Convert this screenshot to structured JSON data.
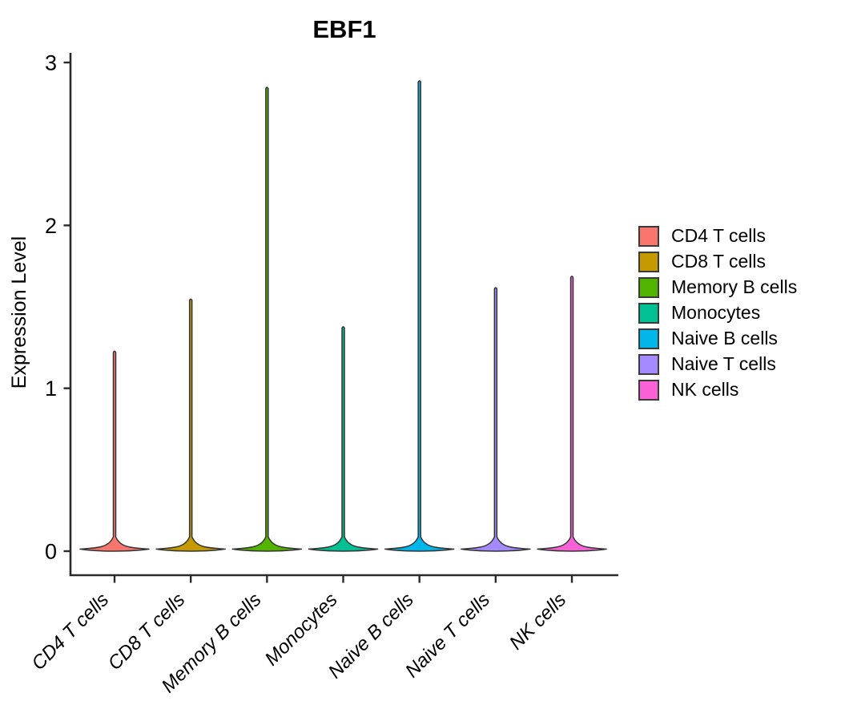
{
  "chart_data": {
    "type": "violin",
    "title": "EBF1",
    "ylabel": "Expression Level",
    "categories": [
      "CD4 T cells",
      "CD8 T cells",
      "Memory B cells",
      "Monocytes",
      "Naive B cells",
      "Naive T cells",
      "NK cells"
    ],
    "colors": [
      "#F8766D",
      "#C49A00",
      "#53B400",
      "#00C094",
      "#00B6EB",
      "#A58AFF",
      "#FB61D7"
    ],
    "max_expression": [
      1.23,
      1.55,
      2.85,
      1.38,
      2.89,
      1.62,
      1.69
    ],
    "distribution_note": "each violin has nearly all density at 0 (wide flat base) with a very thin tail rising to its maximum",
    "yticks": [
      0,
      1,
      2,
      3
    ],
    "ylim": [
      0,
      3.05
    ],
    "grid": false,
    "legend_position": "right",
    "legend_entries": [
      {
        "label": "CD4 T cells",
        "color": "#F8766D"
      },
      {
        "label": "CD8 T cells",
        "color": "#C49A00"
      },
      {
        "label": "Memory B cells",
        "color": "#53B400"
      },
      {
        "label": "Monocytes",
        "color": "#00C094"
      },
      {
        "label": "Naive B cells",
        "color": "#00B6EB"
      },
      {
        "label": "Naive T cells",
        "color": "#A58AFF"
      },
      {
        "label": "NK cells",
        "color": "#FB61D7"
      }
    ],
    "outline_color": "#333333",
    "axis_color": "#2a2a2a"
  }
}
